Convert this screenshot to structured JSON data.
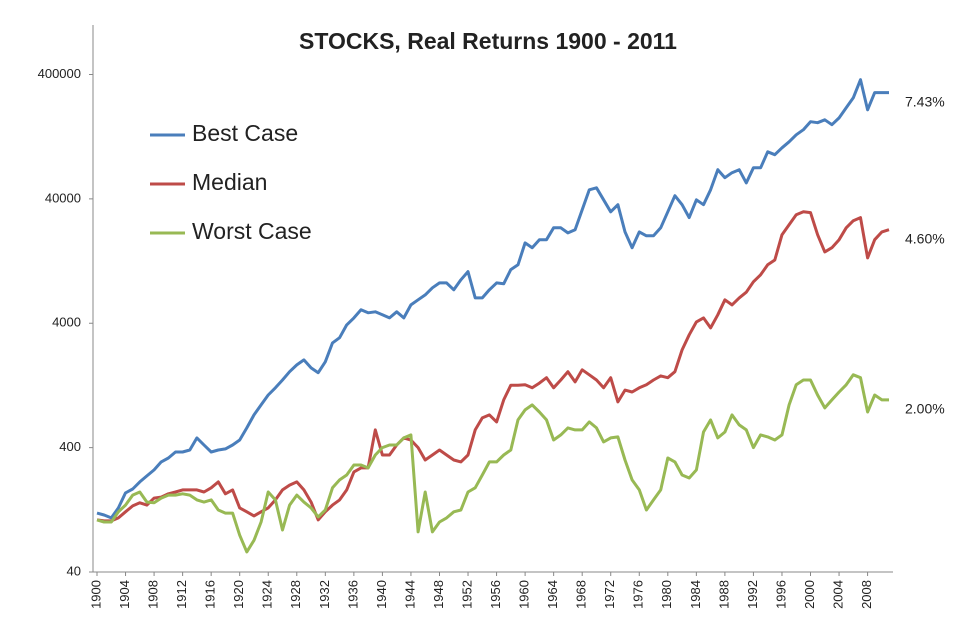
{
  "chart_data": {
    "type": "line",
    "title": "STOCKS, Real Returns 1900 - 2011",
    "x": [
      1900,
      1901,
      1902,
      1903,
      1904,
      1905,
      1906,
      1907,
      1908,
      1909,
      1910,
      1911,
      1912,
      1913,
      1914,
      1915,
      1916,
      1917,
      1918,
      1919,
      1920,
      1921,
      1922,
      1923,
      1924,
      1925,
      1926,
      1927,
      1928,
      1929,
      1930,
      1931,
      1932,
      1933,
      1934,
      1935,
      1936,
      1937,
      1938,
      1939,
      1940,
      1941,
      1942,
      1943,
      1944,
      1945,
      1946,
      1947,
      1948,
      1949,
      1950,
      1951,
      1952,
      1953,
      1954,
      1955,
      1956,
      1957,
      1958,
      1959,
      1960,
      1961,
      1962,
      1963,
      1964,
      1965,
      1966,
      1967,
      1968,
      1969,
      1970,
      1971,
      1972,
      1973,
      1974,
      1975,
      1976,
      1977,
      1978,
      1979,
      1980,
      1981,
      1982,
      1983,
      1984,
      1985,
      1986,
      1987,
      1988,
      1989,
      1990,
      1991,
      1992,
      1993,
      1994,
      1995,
      1996,
      1997,
      1998,
      1999,
      2000,
      2001,
      2002,
      2003,
      2004,
      2005,
      2006,
      2007,
      2008,
      2009,
      2010,
      2011
    ],
    "series": [
      {
        "name": "Best Case",
        "color": "#4a7ebb",
        "end_label": "7.43%",
        "values": [
          119,
          115,
          109,
          131,
          173,
          186,
          212,
          237,
          265,
          307,
          330,
          369,
          369,
          383,
          479,
          420,
          369,
          383,
          391,
          420,
          461,
          576,
          733,
          883,
          1060,
          1210,
          1400,
          1630,
          1850,
          2030,
          1750,
          1600,
          1960,
          2780,
          3060,
          3880,
          4420,
          5130,
          4850,
          4940,
          4680,
          4420,
          4940,
          4420,
          5620,
          6170,
          6760,
          7710,
          8450,
          8450,
          7430,
          8940,
          10400,
          6400,
          6400,
          7430,
          8450,
          8300,
          10800,
          11800,
          17700,
          16200,
          18800,
          18800,
          23400,
          23400,
          21300,
          22600,
          32700,
          47300,
          49100,
          39300,
          31500,
          35900,
          21700,
          16200,
          21700,
          20200,
          20200,
          23400,
          31500,
          42400,
          35900,
          28300,
          39300,
          35900,
          47300,
          68600,
          59200,
          64900,
          68600,
          53800,
          71100,
          71100,
          95700,
          90600,
          103000,
          115000,
          131000,
          144000,
          167000,
          164000,
          173000,
          158000,
          179000,
          216000,
          260000,
          363000,
          208000,
          286000,
          286000,
          286000
        ]
      },
      {
        "name": "Median",
        "color": "#be4b48",
        "end_label": "4.60%",
        "values": [
          105,
          103,
          103,
          109,
          122,
          136,
          144,
          138,
          157,
          160,
          170,
          176,
          183,
          183,
          183,
          176,
          190,
          212,
          170,
          183,
          131,
          122,
          113,
          122,
          131,
          152,
          183,
          200,
          212,
          183,
          146,
          105,
          122,
          138,
          152,
          183,
          255,
          275,
          275,
          555,
          349,
          349,
          420,
          479,
          461,
          400,
          318,
          349,
          383,
          349,
          318,
          307,
          349,
          555,
          693,
          733,
          644,
          968,
          1270,
          1270,
          1280,
          1210,
          1320,
          1460,
          1210,
          1400,
          1630,
          1350,
          1690,
          1540,
          1400,
          1210,
          1460,
          933,
          1160,
          1120,
          1210,
          1280,
          1400,
          1510,
          1460,
          1630,
          2440,
          3230,
          4100,
          4420,
          3670,
          4680,
          6170,
          5620,
          6400,
          7110,
          8610,
          9800,
          11800,
          12900,
          20600,
          24800,
          29800,
          31500,
          31000,
          20600,
          15000,
          16200,
          18800,
          23400,
          26700,
          28300,
          13400,
          18800,
          21700,
          22600
        ]
      },
      {
        "name": "Worst Case",
        "color": "#98b954",
        "end_label": "2.00%",
        "values": [
          105,
          101,
          101,
          122,
          138,
          166,
          176,
          146,
          144,
          157,
          166,
          166,
          170,
          166,
          152,
          146,
          152,
          126,
          119,
          119,
          79,
          58,
          72,
          101,
          176,
          152,
          87,
          138,
          166,
          146,
          131,
          111,
          126,
          190,
          220,
          241,
          290,
          290,
          275,
          349,
          400,
          420,
          420,
          479,
          506,
          84,
          176,
          84,
          101,
          109,
          122,
          126,
          176,
          190,
          241,
          307,
          307,
          349,
          383,
          668,
          804,
          883,
          774,
          668,
          461,
          506,
          576,
          555,
          555,
          644,
          576,
          445,
          479,
          488,
          318,
          220,
          183,
          126,
          152,
          183,
          330,
          307,
          241,
          228,
          265,
          534,
          668,
          479,
          534,
          733,
          609,
          555,
          400,
          506,
          488,
          461,
          506,
          883,
          1280,
          1400,
          1400,
          1060,
          834,
          968,
          1120,
          1280,
          1540,
          1460,
          774,
          1060,
          968,
          968
        ]
      }
    ],
    "xlim": [
      1900,
      2011
    ],
    "xticks": [
      1900,
      1904,
      1908,
      1912,
      1916,
      1920,
      1924,
      1928,
      1932,
      1936,
      1940,
      1944,
      1948,
      1952,
      1956,
      1960,
      1964,
      1968,
      1972,
      1976,
      1980,
      1984,
      1988,
      1992,
      1996,
      2000,
      2004,
      2008
    ],
    "yscale": "log",
    "ylim": [
      40,
      1000000
    ],
    "yticks": [
      40,
      400,
      4000,
      40000,
      400000
    ],
    "grid": false,
    "legend": "upper left"
  }
}
